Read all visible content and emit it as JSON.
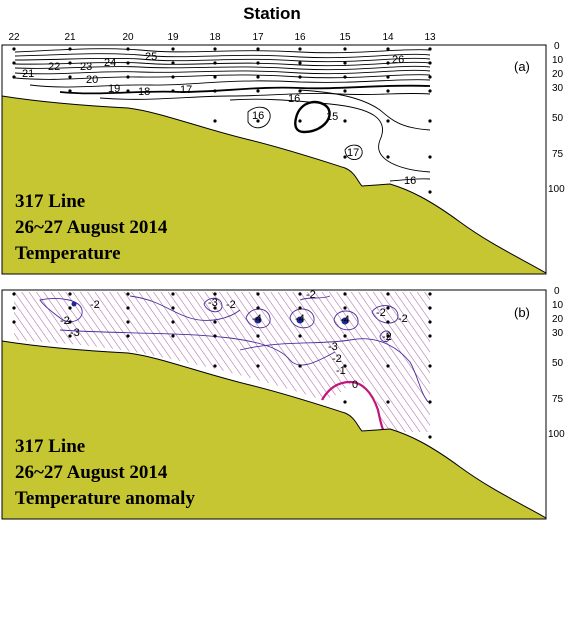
{
  "title": "Station",
  "stations": [
    "22",
    "21",
    "20",
    "19",
    "18",
    "17",
    "16",
    "15",
    "14",
    "13"
  ],
  "depths": [
    "0",
    "10",
    "20",
    "30",
    "50",
    "75",
    "100"
  ],
  "panel_a": {
    "tag": "(a)",
    "caption": [
      "317 Line",
      "26~27 August 2014",
      "Temperature"
    ],
    "contour_labels": [
      "25",
      "26",
      "24",
      "23",
      "22",
      "21",
      "20",
      "19",
      "18",
      "17",
      "16",
      "16",
      "15",
      "17",
      "16"
    ]
  },
  "panel_b": {
    "tag": "(b)",
    "caption": [
      "317 Line",
      "26~27 August 2014",
      "Temperature anomaly"
    ],
    "contour_labels": [
      "-2",
      "-2",
      "-2",
      "-2",
      "-2",
      "-3",
      "-3",
      "-4",
      "-4",
      "-4",
      "-2",
      "-3",
      "-2",
      "-2",
      "-1",
      "0"
    ]
  },
  "colors": {
    "seafloor": "#c6c633",
    "contour": "#000000",
    "anomaly_line": "#4a2d9c",
    "zero_line": "#c0157a",
    "hatch": "#b06aa8"
  }
}
